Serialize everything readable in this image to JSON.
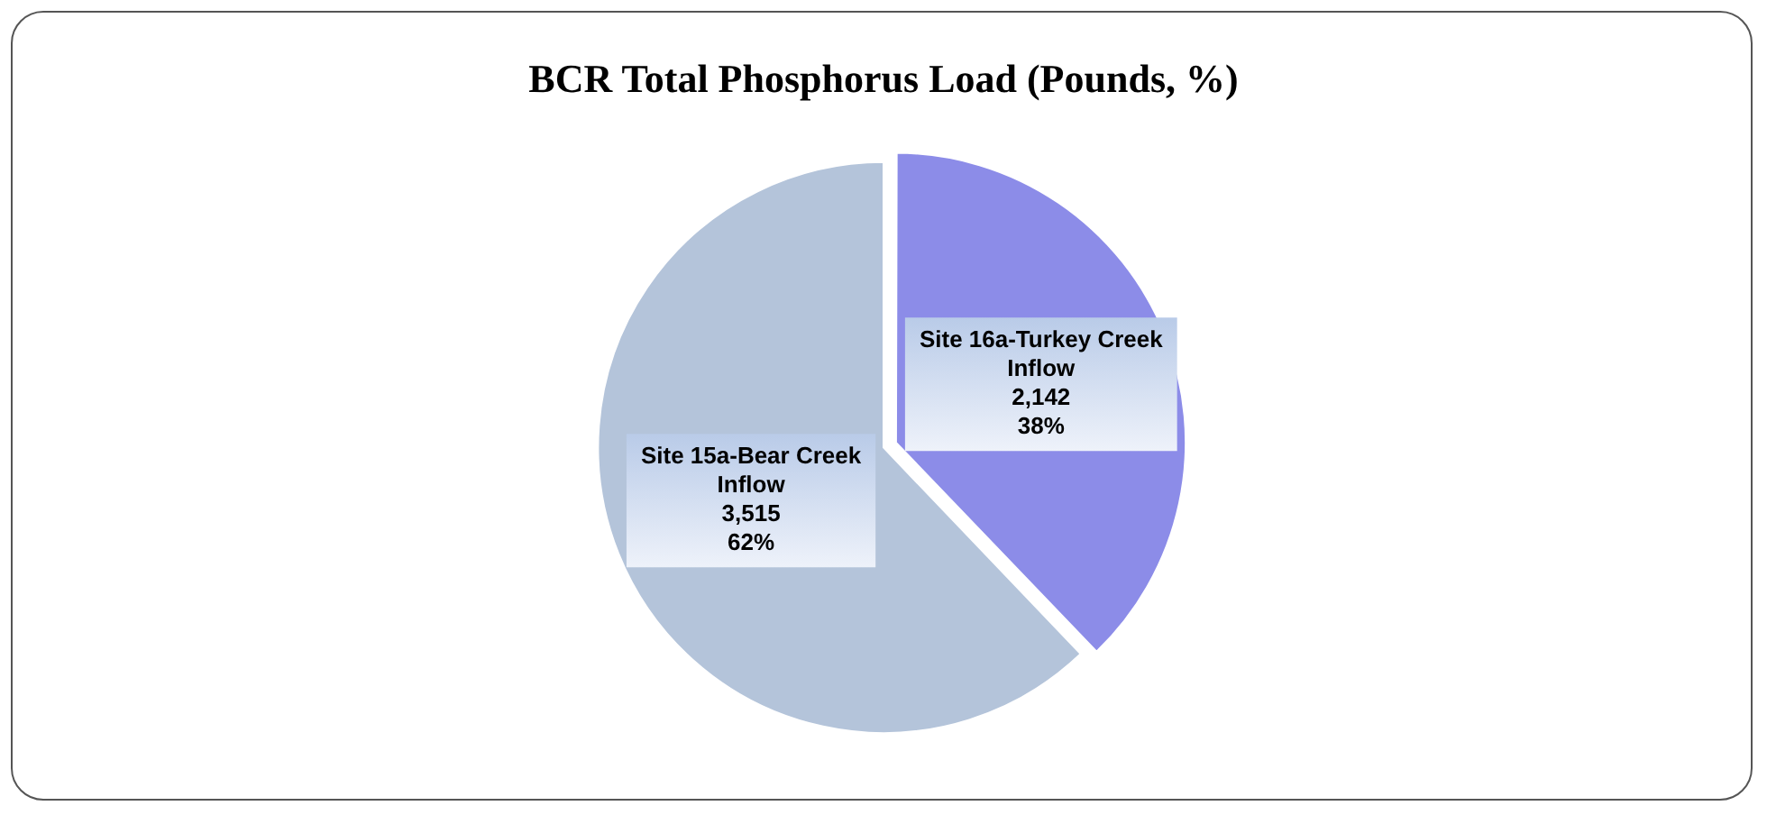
{
  "chart_data": {
    "type": "pie",
    "title": "BCR Total Phosphorus Load (Pounds, %)",
    "categories": [
      "Site 15a-Bear Creek Inflow",
      "Site 16a-Turkey Creek Inflow"
    ],
    "values": [
      3515,
      2142
    ],
    "colors": [
      "#b4c4da",
      "#8c8ce8"
    ],
    "value_labels": [
      "3,515\n62%",
      "2,142\n38%"
    ],
    "legend": false
  }
}
